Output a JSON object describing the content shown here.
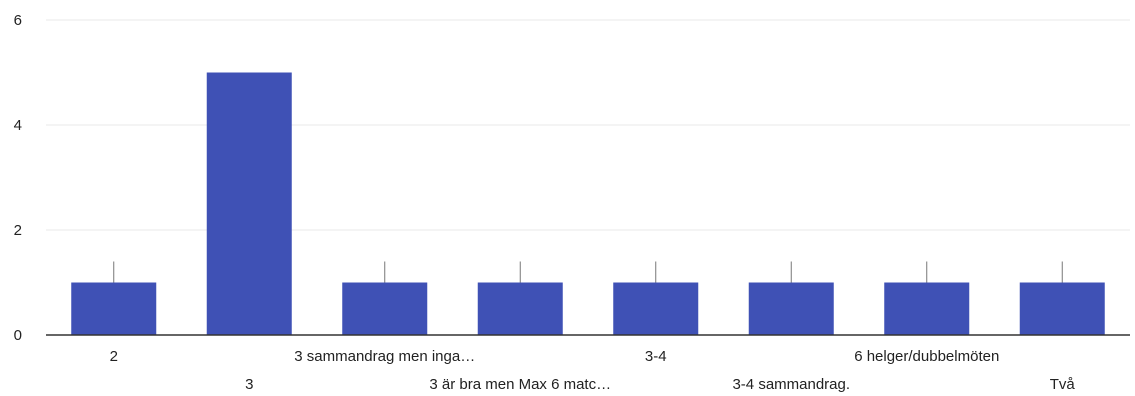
{
  "chart_data": {
    "type": "bar",
    "categories": [
      "2",
      "3",
      "3 sammandrag men inga…",
      "3 är bra men Max 6 matc…",
      "3-4",
      "3-4 sammandrag.",
      "6 helger/dubbelmöten",
      "Två"
    ],
    "values": [
      1,
      5,
      1,
      1,
      1,
      1,
      1,
      1
    ],
    "y_ticks": [
      "0",
      "2",
      "4",
      "6"
    ],
    "ylim": [
      0,
      6
    ],
    "title": "",
    "xlabel": "",
    "ylabel": "",
    "grid": true,
    "legend": "none",
    "bar_color": "#3f51b5",
    "grid_color": "#e8e8e8",
    "axis_color": "#333333"
  }
}
